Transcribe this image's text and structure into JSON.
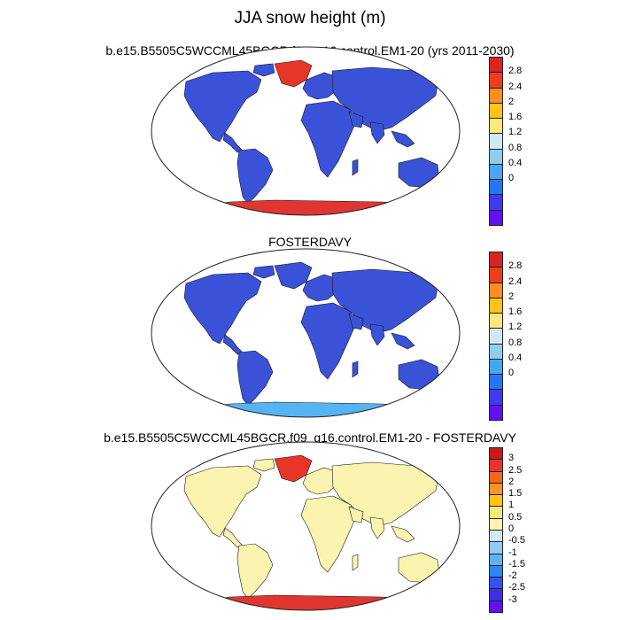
{
  "title": "JJA snow height (m)",
  "colors": {
    "ocean": "#ffffff",
    "land_base": "#3a52d8",
    "outline": "#1a1a1a",
    "warm_ice": "#e8352a",
    "cool_ice": "#4db8f0",
    "diff_land": "#fbf4b0"
  },
  "panels": [
    {
      "title": "b.e15.B5505C5WCCML45BGCR.f09_g16.control.EM1-20 (yrs 2011-2030)",
      "greenland_color": "#e8352a",
      "antarctica_color": "#e03530",
      "land_color": "#3a52d8",
      "colorbar": {
        "labels": [
          "2.8",
          "2.4",
          "2",
          "1.6",
          "1.2",
          "0.8",
          "0.4",
          "0"
        ],
        "colors": [
          "#d7261e",
          "#f03b20",
          "#fc8d1e",
          "#fec31a",
          "#ffe87a",
          "#cfeaf5",
          "#8fcef0",
          "#4aa6f2",
          "#2477f2",
          "#3b3bf0",
          "#6010f5"
        ]
      }
    },
    {
      "title": "FOSTERDAVY",
      "greenland_color": "#3a52d8",
      "antarctica_color": "#57b4f2",
      "land_color": "#3a52d8",
      "colorbar": {
        "labels": [
          "2.8",
          "2.4",
          "2",
          "1.6",
          "1.2",
          "0.8",
          "0.4",
          "0"
        ],
        "colors": [
          "#d7261e",
          "#f03b20",
          "#fc8d1e",
          "#fec31a",
          "#ffe87a",
          "#cfeaf5",
          "#8fcef0",
          "#4aa6f2",
          "#2477f2",
          "#3b3bf0",
          "#6010f5"
        ]
      }
    },
    {
      "title": "b.e15.B5505C5WCCML45BGCR.f09_g16.control.EM1-20 - FOSTERDAVY",
      "greenland_color": "#e8352a",
      "antarctica_color": "#e03530",
      "land_color": "#fbf4b0",
      "colorbar": {
        "labels": [
          "3",
          "2.5",
          "2",
          "1.5",
          "1",
          "0.5",
          "0",
          "-0.5",
          "-1",
          "-1.5",
          "-2",
          "-2.5",
          "-3"
        ],
        "colors": [
          "#c81a1a",
          "#e8352a",
          "#f5651f",
          "#fa9520",
          "#fec31a",
          "#ffe87a",
          "#fbf4b0",
          "#cfeaf5",
          "#8fcef0",
          "#5cb2f2",
          "#2f86f2",
          "#2f55ec",
          "#3b2fe8",
          "#6010f5"
        ]
      }
    }
  ]
}
